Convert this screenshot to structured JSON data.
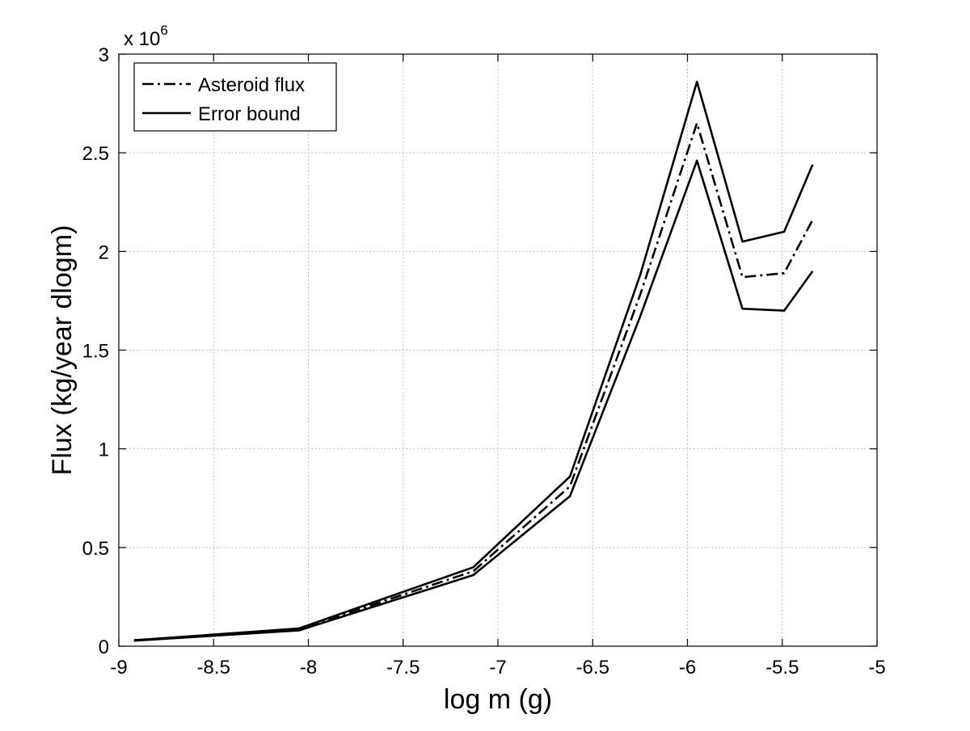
{
  "chart_data": {
    "type": "line",
    "title": "",
    "xlabel": "log m (g)",
    "ylabel": "Flux (kg/year dlogm)",
    "y_exponent_label": {
      "base": "x 10",
      "power": "6"
    },
    "xlim": [
      -9,
      -5
    ],
    "ylim": [
      0,
      3
    ],
    "y_scale_factor": 1000000,
    "xticks": [
      -9,
      -8.5,
      -8,
      -7.5,
      -7,
      -6.5,
      -6,
      -5.5,
      -5
    ],
    "xtick_labels": [
      "-9",
      "-8.5",
      "-8",
      "-7.5",
      "-7",
      "-6.5",
      "-6",
      "-5.5",
      "-5"
    ],
    "yticks": [
      0,
      0.5,
      1,
      1.5,
      2,
      2.5,
      3
    ],
    "ytick_labels": [
      "0",
      "0.5",
      "1",
      "1.5",
      "2",
      "2.5",
      "3"
    ],
    "grid": true,
    "legend_position": "top-left",
    "x": [
      -8.92,
      -8.05,
      -7.13,
      -6.62,
      -6.25,
      -5.95,
      -5.71,
      -5.49,
      -5.34
    ],
    "series": [
      {
        "name": "Asteroid flux",
        "style": "dashdot",
        "values": [
          0.03,
          0.085,
          0.38,
          0.81,
          1.78,
          2.65,
          1.87,
          1.89,
          2.16
        ]
      },
      {
        "name": "Error bound",
        "style": "solid",
        "values": [
          0.03,
          0.09,
          0.4,
          0.86,
          1.88,
          2.86,
          2.05,
          2.1,
          2.44
        ]
      },
      {
        "name": "",
        "style": "solid",
        "values": [
          0.028,
          0.08,
          0.36,
          0.76,
          1.67,
          2.46,
          1.71,
          1.7,
          1.9
        ]
      }
    ],
    "colors": {
      "line": "#000000",
      "grid": "#b0b0b0"
    }
  }
}
